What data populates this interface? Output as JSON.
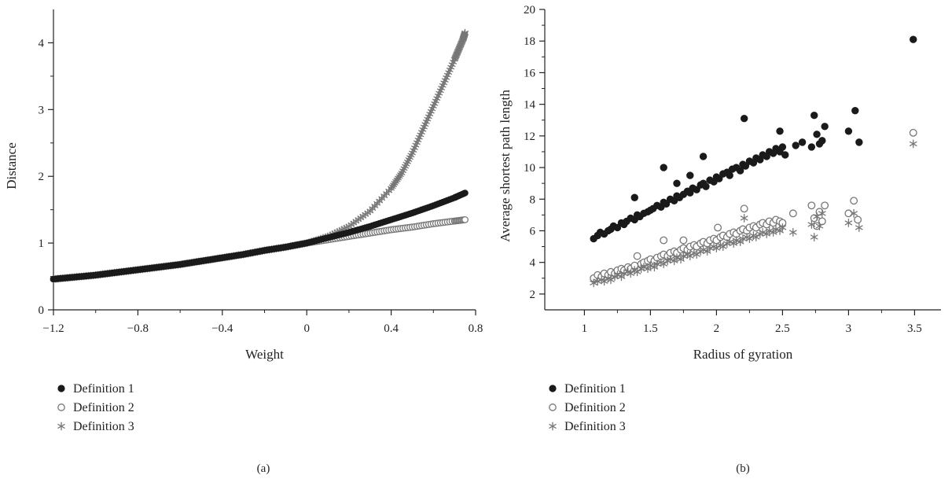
{
  "chart_data": [
    {
      "type": "scatter",
      "panel_label": "(a)",
      "xlabel": "Weight",
      "ylabel": "Distance",
      "xlim": [
        -1.2,
        0.8
      ],
      "ylim": [
        0,
        4.5
      ],
      "xticks": [
        -1.2,
        -0.8,
        -0.4,
        0,
        0.4,
        0.8
      ],
      "xtick_labels": [
        "−1.2",
        "−0.8",
        "−0.4",
        "0",
        "0.4",
        "0.8"
      ],
      "yticks": [
        0,
        1,
        2,
        3,
        4
      ],
      "ytick_labels": [
        "0",
        "1",
        "2",
        "3",
        "4"
      ],
      "grid": false,
      "legend_position": "bottom-left",
      "series": [
        {
          "name": "Definition 1",
          "marker": "filled-circle",
          "color": "#1a1a1a",
          "x": [
            -1.2,
            -1.1,
            -1.0,
            -0.9,
            -0.8,
            -0.7,
            -0.6,
            -0.5,
            -0.4,
            -0.3,
            -0.2,
            -0.1,
            0.0,
            0.1,
            0.2,
            0.3,
            0.4,
            0.5,
            0.6,
            0.7,
            0.75
          ],
          "y": [
            0.46,
            0.49,
            0.52,
            0.56,
            0.6,
            0.64,
            0.68,
            0.73,
            0.78,
            0.83,
            0.89,
            0.94,
            1.0,
            1.08,
            1.16,
            1.25,
            1.35,
            1.45,
            1.56,
            1.68,
            1.75
          ]
        },
        {
          "name": "Definition 2",
          "marker": "open-circle",
          "color": "#777777",
          "x": [
            -1.2,
            -1.1,
            -1.0,
            -0.9,
            -0.8,
            -0.7,
            -0.6,
            -0.5,
            -0.4,
            -0.3,
            -0.2,
            -0.1,
            0.0,
            0.1,
            0.2,
            0.3,
            0.4,
            0.5,
            0.6,
            0.7,
            0.75
          ],
          "y": [
            0.46,
            0.49,
            0.52,
            0.56,
            0.6,
            0.64,
            0.68,
            0.73,
            0.78,
            0.83,
            0.89,
            0.94,
            1.0,
            1.05,
            1.1,
            1.15,
            1.2,
            1.24,
            1.29,
            1.33,
            1.35
          ]
        },
        {
          "name": "Definition 3",
          "marker": "asterisk",
          "color": "#777777",
          "x": [
            -1.2,
            -1.1,
            -1.0,
            -0.9,
            -0.8,
            -0.7,
            -0.6,
            -0.5,
            -0.4,
            -0.3,
            -0.2,
            -0.1,
            0.0,
            0.1,
            0.2,
            0.3,
            0.4,
            0.45,
            0.5,
            0.55,
            0.6,
            0.65,
            0.7,
            0.72,
            0.74,
            0.75
          ],
          "y": [
            0.46,
            0.49,
            0.52,
            0.56,
            0.6,
            0.64,
            0.68,
            0.73,
            0.78,
            0.83,
            0.89,
            0.94,
            1.0,
            1.1,
            1.25,
            1.48,
            1.82,
            2.05,
            2.35,
            2.7,
            3.05,
            3.4,
            3.75,
            3.9,
            4.05,
            4.15
          ]
        }
      ]
    },
    {
      "type": "scatter",
      "panel_label": "(b)",
      "xlabel": "Radius of gyration",
      "ylabel": "Average shortest path length",
      "xlim": [
        0.7,
        3.7
      ],
      "ylim": [
        1,
        20
      ],
      "xticks": [
        1,
        1.5,
        2,
        2.5,
        3,
        3.5
      ],
      "xtick_labels": [
        "1",
        "1.5",
        "2",
        "2.5",
        "3",
        "3.5"
      ],
      "yticks": [
        2,
        4,
        6,
        8,
        10,
        12,
        14,
        16,
        18,
        20
      ],
      "ytick_labels": [
        "2",
        "4",
        "6",
        "8",
        "10",
        "12",
        "14",
        "16",
        "18",
        "20"
      ],
      "grid": false,
      "legend_position": "bottom-left",
      "series": [
        {
          "name": "Definition 1",
          "marker": "filled-circle",
          "color": "#1a1a1a",
          "x": [
            1.07,
            1.1,
            1.12,
            1.15,
            1.18,
            1.2,
            1.22,
            1.25,
            1.28,
            1.3,
            1.32,
            1.35,
            1.38,
            1.4,
            1.42,
            1.45,
            1.48,
            1.5,
            1.52,
            1.55,
            1.58,
            1.6,
            1.62,
            1.65,
            1.68,
            1.7,
            1.72,
            1.75,
            1.78,
            1.8,
            1.82,
            1.85,
            1.88,
            1.9,
            1.92,
            1.95,
            1.98,
            2.0,
            2.02,
            2.05,
            2.08,
            2.1,
            2.12,
            2.15,
            2.18,
            2.2,
            2.22,
            2.25,
            2.28,
            2.3,
            2.33,
            2.35,
            2.38,
            2.4,
            2.43,
            2.45,
            2.48,
            2.5,
            2.52,
            2.6,
            2.65,
            2.72,
            2.74,
            2.76,
            2.78,
            2.8,
            2.82,
            3.0,
            3.05,
            3.08,
            3.49,
            1.38,
            1.6,
            1.7,
            1.8,
            1.9,
            2.21,
            2.48
          ],
          "y": [
            5.5,
            5.7,
            5.9,
            5.8,
            6.0,
            6.1,
            6.3,
            6.2,
            6.5,
            6.4,
            6.6,
            6.8,
            6.7,
            7.0,
            6.9,
            7.1,
            7.2,
            7.3,
            7.4,
            7.6,
            7.5,
            7.8,
            7.7,
            8.0,
            7.9,
            8.2,
            8.1,
            8.3,
            8.5,
            8.4,
            8.7,
            8.6,
            8.9,
            9.0,
            8.8,
            9.2,
            9.1,
            9.4,
            9.3,
            9.6,
            9.7,
            9.5,
            9.9,
            10.0,
            9.8,
            10.2,
            10.1,
            10.4,
            10.3,
            10.6,
            10.5,
            10.8,
            10.7,
            11.0,
            10.9,
            11.2,
            11.0,
            11.3,
            10.8,
            11.4,
            11.6,
            11.3,
            13.3,
            12.1,
            11.5,
            11.7,
            12.6,
            12.3,
            13.6,
            11.6,
            18.1,
            8.1,
            10.0,
            9.0,
            9.5,
            10.7,
            13.1,
            12.3
          ]
        },
        {
          "name": "Definition 2",
          "marker": "open-circle",
          "color": "#777777",
          "x": [
            1.07,
            1.1,
            1.13,
            1.15,
            1.18,
            1.2,
            1.23,
            1.25,
            1.28,
            1.3,
            1.33,
            1.35,
            1.38,
            1.4,
            1.43,
            1.45,
            1.48,
            1.5,
            1.53,
            1.55,
            1.58,
            1.6,
            1.63,
            1.65,
            1.68,
            1.7,
            1.73,
            1.75,
            1.78,
            1.8,
            1.83,
            1.85,
            1.88,
            1.9,
            1.93,
            1.95,
            1.98,
            2.0,
            2.03,
            2.05,
            2.08,
            2.1,
            2.13,
            2.15,
            2.18,
            2.2,
            2.23,
            2.25,
            2.28,
            2.3,
            2.33,
            2.35,
            2.38,
            2.4,
            2.43,
            2.45,
            2.48,
            2.5,
            2.58,
            2.72,
            2.74,
            2.76,
            2.78,
            2.8,
            2.82,
            3.0,
            3.04,
            3.07,
            3.49,
            1.6,
            1.75,
            2.01,
            2.21
          ],
          "y": [
            3.0,
            3.2,
            3.1,
            3.3,
            3.2,
            3.4,
            3.3,
            3.5,
            3.6,
            3.5,
            3.7,
            3.6,
            3.8,
            4.4,
            3.9,
            4.0,
            4.1,
            4.2,
            4.1,
            4.3,
            4.4,
            4.5,
            4.4,
            4.6,
            4.7,
            4.6,
            4.8,
            4.9,
            4.8,
            5.0,
            5.1,
            5.0,
            5.2,
            5.3,
            5.2,
            5.4,
            5.5,
            5.4,
            5.6,
            5.7,
            5.6,
            5.8,
            5.9,
            5.8,
            6.0,
            6.1,
            6.0,
            6.2,
            6.3,
            6.2,
            6.4,
            6.5,
            6.4,
            6.6,
            6.5,
            6.7,
            6.6,
            6.5,
            7.1,
            7.6,
            6.8,
            6.3,
            7.2,
            6.6,
            7.6,
            7.1,
            7.9,
            6.7,
            12.2,
            5.4,
            5.4,
            6.2,
            7.4
          ]
        },
        {
          "name": "Definition 3",
          "marker": "asterisk",
          "color": "#777777",
          "x": [
            1.07,
            1.1,
            1.13,
            1.15,
            1.18,
            1.2,
            1.23,
            1.25,
            1.28,
            1.3,
            1.33,
            1.35,
            1.38,
            1.4,
            1.43,
            1.45,
            1.48,
            1.5,
            1.53,
            1.55,
            1.58,
            1.6,
            1.63,
            1.65,
            1.68,
            1.7,
            1.73,
            1.75,
            1.78,
            1.8,
            1.83,
            1.85,
            1.88,
            1.9,
            1.93,
            1.95,
            1.98,
            2.0,
            2.03,
            2.05,
            2.08,
            2.1,
            2.13,
            2.15,
            2.18,
            2.2,
            2.23,
            2.25,
            2.28,
            2.3,
            2.33,
            2.35,
            2.38,
            2.4,
            2.43,
            2.45,
            2.48,
            2.5,
            2.58,
            2.72,
            2.74,
            2.76,
            2.78,
            2.8,
            3.0,
            3.04,
            3.08,
            3.49,
            2.21
          ],
          "y": [
            2.7,
            2.8,
            2.9,
            2.8,
            3.0,
            2.9,
            3.1,
            3.2,
            3.1,
            3.3,
            3.4,
            3.3,
            3.5,
            3.4,
            3.6,
            3.7,
            3.6,
            3.8,
            3.7,
            3.9,
            4.0,
            3.9,
            4.1,
            4.2,
            4.1,
            4.3,
            4.2,
            4.4,
            4.5,
            4.4,
            4.6,
            4.5,
            4.7,
            4.8,
            4.7,
            4.9,
            5.0,
            4.9,
            5.1,
            5.0,
            5.2,
            5.3,
            5.2,
            5.4,
            5.3,
            5.5,
            5.6,
            5.5,
            5.7,
            5.6,
            5.8,
            5.9,
            5.8,
            6.0,
            5.9,
            6.1,
            6.0,
            6.2,
            5.9,
            6.4,
            5.6,
            6.9,
            6.3,
            7.1,
            6.5,
            7.1,
            6.2,
            11.5,
            6.8
          ]
        }
      ]
    }
  ]
}
